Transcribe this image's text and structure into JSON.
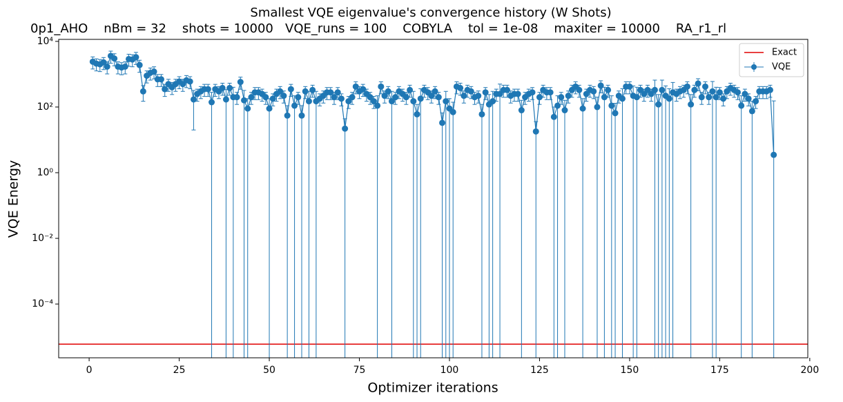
{
  "chart_data": {
    "type": "errorbar_line",
    "title": "Smallest VQE eigenvalue's convergence history (W Shots)",
    "subtitle": "0p1_AHO    nBm = 32    shots = 10000   VQE_runs = 100    COBYLA    tol = 1e-08    maxiter = 10000    RA_r1_rl",
    "x_label": "Optimizer iterations",
    "y_label": "VQE Energy",
    "log_y": true,
    "legend": "upper right",
    "xlim": [
      -8.45,
      199.45
    ],
    "xticks": [
      0,
      25,
      50,
      75,
      100,
      125,
      150,
      175,
      200
    ],
    "ylim": [
      2.3e-06,
      11500
    ],
    "yticks": [
      {
        "value": 0.0001,
        "label": "10⁻⁴"
      },
      {
        "value": 0.01,
        "label": "10⁻²"
      },
      {
        "value": 1,
        "label": "10⁰"
      },
      {
        "value": 100,
        "label": "10²"
      },
      {
        "value": 10000,
        "label": "10⁴"
      }
    ],
    "hlines": [
      {
        "name": "Exact",
        "value": 6e-06,
        "color": "#e00000"
      }
    ],
    "x": [
      1,
      2,
      3,
      4,
      5,
      6,
      7,
      8,
      9,
      10,
      11,
      12,
      13,
      14,
      15,
      16,
      17,
      18,
      19,
      20,
      21,
      22,
      23,
      24,
      25,
      26,
      27,
      28,
      29,
      30,
      31,
      32,
      33,
      34,
      35,
      36,
      37,
      38,
      39,
      40,
      41,
      42,
      43,
      44,
      45,
      46,
      47,
      48,
      49,
      50,
      51,
      52,
      53,
      54,
      55,
      56,
      57,
      58,
      59,
      60,
      61,
      62,
      63,
      64,
      65,
      66,
      67,
      68,
      69,
      70,
      71,
      72,
      73,
      74,
      75,
      76,
      77,
      78,
      79,
      80,
      81,
      82,
      83,
      84,
      85,
      86,
      87,
      88,
      89,
      90,
      91,
      92,
      93,
      94,
      95,
      96,
      97,
      98,
      99,
      100,
      101,
      102,
      103,
      104,
      105,
      106,
      107,
      108,
      109,
      110,
      111,
      112,
      113,
      114,
      115,
      116,
      117,
      118,
      119,
      120,
      121,
      122,
      123,
      124,
      125,
      126,
      127,
      128,
      129,
      130,
      131,
      132,
      133,
      134,
      135,
      136,
      137,
      138,
      139,
      140,
      141,
      142,
      143,
      144,
      145,
      146,
      147,
      148,
      149,
      150,
      151,
      152,
      153,
      154,
      155,
      156,
      157,
      158,
      159,
      160,
      161,
      162,
      163,
      164,
      165,
      166,
      167,
      168,
      169,
      170,
      171,
      172,
      173,
      174,
      175,
      176,
      177,
      178,
      179,
      180,
      181,
      182,
      183,
      184,
      185,
      186,
      187,
      188,
      189,
      190
    ],
    "series": [
      {
        "name": "VQE",
        "color": "#1f77b4",
        "values": [
          2400,
          2100,
          2000,
          2300,
          1700,
          3600,
          3000,
          1700,
          1600,
          1700,
          2900,
          2800,
          3300,
          1900,
          300,
          900,
          1100,
          1200,
          700,
          700,
          350,
          500,
          400,
          500,
          600,
          500,
          650,
          600,
          170,
          250,
          300,
          350,
          350,
          140,
          350,
          300,
          380,
          170,
          380,
          200,
          200,
          580,
          160,
          90,
          200,
          280,
          280,
          250,
          200,
          90,
          180,
          250,
          300,
          220,
          55,
          350,
          110,
          200,
          55,
          300,
          150,
          330,
          150,
          180,
          220,
          280,
          280,
          200,
          280,
          180,
          22,
          150,
          200,
          420,
          300,
          350,
          250,
          200,
          150,
          110,
          420,
          220,
          300,
          150,
          200,
          300,
          250,
          200,
          330,
          150,
          60,
          180,
          330,
          280,
          220,
          300,
          200,
          33,
          150,
          90,
          70,
          420,
          380,
          220,
          330,
          300,
          200,
          220,
          60,
          280,
          120,
          150,
          250,
          250,
          330,
          330,
          220,
          250,
          250,
          80,
          200,
          250,
          280,
          18,
          200,
          330,
          280,
          280,
          50,
          110,
          200,
          80,
          220,
          330,
          420,
          330,
          90,
          250,
          330,
          300,
          100,
          450,
          200,
          330,
          110,
          65,
          220,
          180,
          420,
          420,
          220,
          200,
          330,
          250,
          330,
          250,
          330,
          120,
          330,
          220,
          180,
          280,
          250,
          300,
          330,
          420,
          120,
          330,
          520,
          200,
          420,
          200,
          300,
          200,
          280,
          180,
          300,
          380,
          330,
          280,
          110,
          250,
          180,
          75,
          150,
          300,
          300,
          300,
          330,
          3.5
        ],
        "errors": [
          960,
          840,
          800,
          920,
          680,
          1440,
          1200,
          680,
          640,
          680,
          1160,
          1120,
          1320,
          760,
          150,
          360,
          440,
          480,
          280,
          280,
          140,
          200,
          160,
          200,
          240,
          200,
          260,
          240,
          150,
          100,
          120,
          140,
          140,
          140,
          140,
          120,
          152,
          170,
          152,
          200,
          80,
          232,
          160,
          90,
          80,
          112,
          112,
          100,
          80,
          90,
          72,
          100,
          120,
          88,
          55,
          140,
          110,
          80,
          55,
          120,
          150,
          132,
          150,
          72,
          88,
          112,
          112,
          80,
          112,
          72,
          22,
          60,
          80,
          168,
          120,
          140,
          100,
          80,
          60,
          110,
          168,
          88,
          120,
          150,
          80,
          120,
          100,
          80,
          132,
          150,
          60,
          180,
          132,
          112,
          88,
          120,
          80,
          33,
          150,
          90,
          70,
          168,
          152,
          88,
          132,
          120,
          80,
          88,
          60,
          112,
          120,
          150,
          100,
          250,
          132,
          132,
          88,
          100,
          100,
          80,
          80,
          100,
          112,
          18,
          80,
          132,
          112,
          112,
          50,
          110,
          80,
          80,
          88,
          132,
          168,
          132,
          90,
          100,
          132,
          120,
          100,
          180,
          200,
          132,
          110,
          65,
          88,
          180,
          168,
          168,
          220,
          200,
          132,
          100,
          132,
          100,
          330,
          120,
          330,
          220,
          180,
          280,
          100,
          120,
          132,
          168,
          120,
          132,
          208,
          80,
          168,
          80,
          300,
          200,
          112,
          72,
          120,
          152,
          132,
          112,
          110,
          100,
          72,
          75,
          60,
          120,
          120,
          120,
          132,
          150
        ]
      }
    ]
  }
}
